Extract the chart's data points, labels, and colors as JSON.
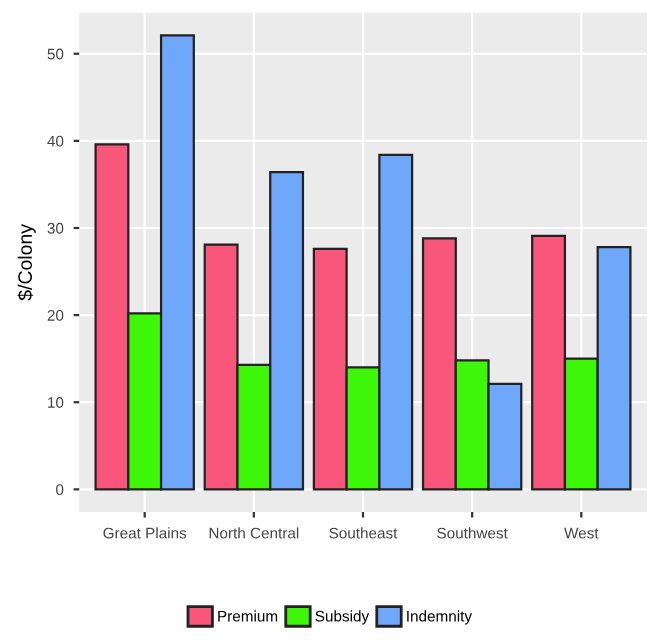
{
  "chart_data": {
    "type": "bar",
    "ylabel": "$/Colony",
    "categories": [
      "Great Plains",
      "North Central",
      "Southeast",
      "Southwest",
      "West"
    ],
    "series": [
      {
        "name": "Premium",
        "color": "#f8567a",
        "values": [
          39.6,
          28.1,
          27.6,
          28.8,
          29.1
        ]
      },
      {
        "name": "Subsidy",
        "color": "#3ef708",
        "values": [
          20.2,
          14.3,
          14.0,
          14.8,
          15.0
        ]
      },
      {
        "name": "Indemnity",
        "color": "#6fa7fb",
        "values": [
          52.1,
          36.4,
          38.4,
          12.1,
          27.8
        ]
      }
    ],
    "ylim": [
      -2.6,
      54.7
    ],
    "yticks": [
      0,
      10,
      20,
      30,
      40,
      50
    ],
    "grid": true,
    "legend": "bottom"
  }
}
